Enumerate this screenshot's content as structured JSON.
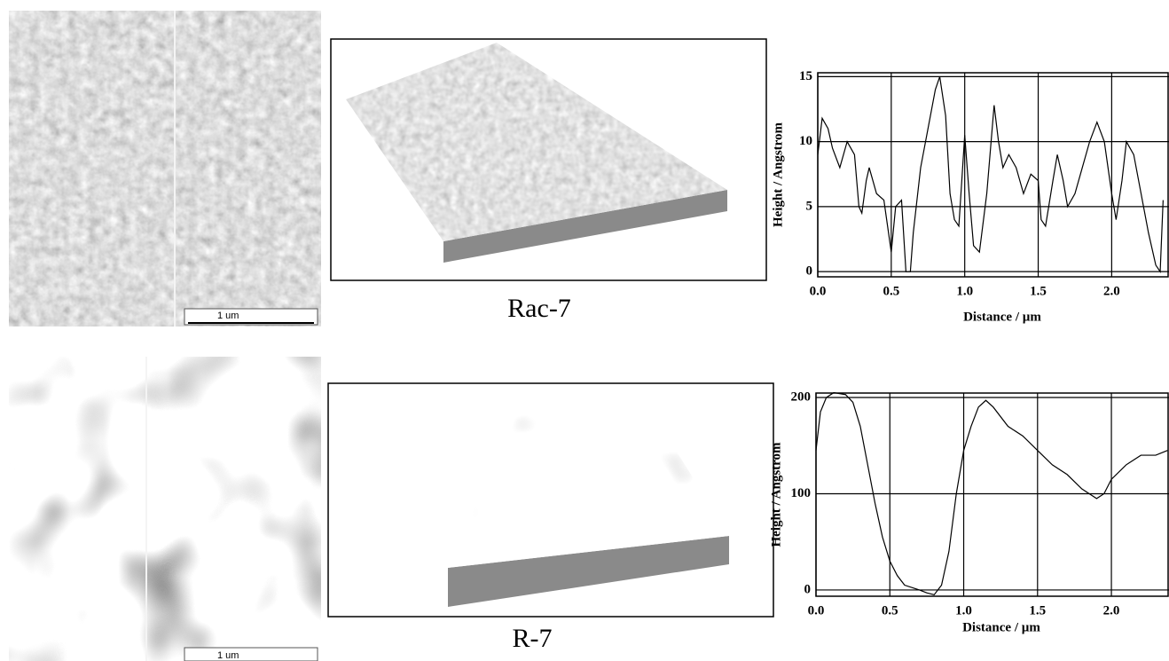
{
  "panels": [
    {
      "scale_bar": "1 um",
      "caption": "Rac-7"
    },
    {
      "scale_bar": "1 um",
      "caption": "R-7"
    }
  ],
  "chart_data": [
    {
      "type": "line",
      "y_label": "Height / Angstrom",
      "x_label": "Distance / µm",
      "color": "#000000",
      "grid": true,
      "x": [
        0,
        0.03,
        0.07,
        0.1,
        0.15,
        0.2,
        0.25,
        0.28,
        0.3,
        0.33,
        0.35,
        0.4,
        0.45,
        0.5,
        0.53,
        0.57,
        0.6,
        0.63,
        0.65,
        0.7,
        0.75,
        0.8,
        0.83,
        0.87,
        0.9,
        0.93,
        0.96,
        1.0,
        1.03,
        1.06,
        1.1,
        1.15,
        1.2,
        1.23,
        1.26,
        1.3,
        1.35,
        1.4,
        1.45,
        1.5,
        1.52,
        1.55,
        1.6,
        1.63,
        1.67,
        1.7,
        1.75,
        1.8,
        1.85,
        1.9,
        1.95,
        2.0,
        2.03,
        2.07,
        2.1,
        2.15,
        2.2,
        2.25,
        2.3,
        2.33,
        2.35
      ],
      "values": [
        9,
        11.8,
        11,
        9.5,
        8,
        10,
        9,
        5,
        4.5,
        7,
        8,
        6,
        5.5,
        1.5,
        5,
        5.5,
        0,
        0,
        3,
        8,
        11,
        14,
        15,
        12,
        6,
        4,
        3.5,
        10.5,
        6,
        2,
        1.5,
        6,
        12.8,
        10,
        8,
        9,
        8,
        6,
        7.5,
        7,
        4,
        3.5,
        7,
        9,
        7,
        5,
        6,
        8,
        10,
        11.5,
        10,
        6,
        4,
        7,
        10,
        9,
        6,
        3,
        0.5,
        0,
        5.5
      ],
      "xlim": [
        0,
        2.39
      ],
      "ylim": [
        -0.4,
        15.3
      ],
      "xticks": [
        {
          "value": 0,
          "label": "0.0"
        },
        0.5,
        {
          "value": 1,
          "label": "1.0"
        },
        1.5,
        {
          "value": 2,
          "label": "2.0"
        }
      ],
      "yticks": [
        0,
        5,
        10,
        15
      ]
    },
    {
      "type": "line",
      "y_label": "Height / Angstrom",
      "x_label": "Distance / µm",
      "color": "#000000",
      "grid": true,
      "x": [
        0,
        0.03,
        0.07,
        0.12,
        0.2,
        0.25,
        0.3,
        0.35,
        0.4,
        0.45,
        0.5,
        0.55,
        0.6,
        0.7,
        0.75,
        0.8,
        0.85,
        0.9,
        0.95,
        1.0,
        1.05,
        1.1,
        1.15,
        1.2,
        1.3,
        1.4,
        1.5,
        1.6,
        1.7,
        1.8,
        1.9,
        1.95,
        2.0,
        2.1,
        2.2,
        2.3,
        2.38
      ],
      "values": [
        145,
        185,
        200,
        205,
        203,
        195,
        170,
        130,
        90,
        55,
        30,
        15,
        5,
        0,
        -3,
        -5,
        5,
        40,
        100,
        145,
        170,
        190,
        197,
        190,
        170,
        160,
        145,
        130,
        120,
        105,
        95,
        100,
        115,
        130,
        140,
        140,
        145
      ],
      "xlim": [
        0,
        2.39
      ],
      "ylim": [
        -6.5,
        204.6
      ],
      "xticks": [
        {
          "value": 0,
          "label": "0.0"
        },
        0.5,
        {
          "value": 1,
          "label": "1.0"
        },
        1.5,
        {
          "value": 2,
          "label": "2.0"
        }
      ],
      "yticks": [
        0,
        100,
        200
      ]
    }
  ]
}
